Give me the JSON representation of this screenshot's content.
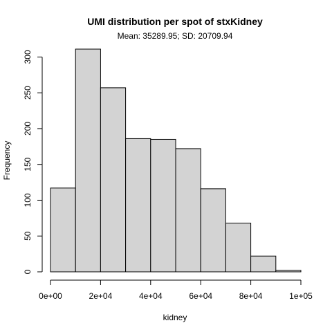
{
  "chart_data": {
    "type": "bar",
    "title": "UMI distribution per spot of stxKidney",
    "subtitle": "Mean: 35289.95; SD: 20709.94",
    "xlabel": "kidney",
    "ylabel": "Frequency",
    "bin_edges": [
      0,
      10000,
      20000,
      30000,
      40000,
      50000,
      60000,
      70000,
      80000,
      90000,
      100000
    ],
    "values": [
      117,
      311,
      257,
      186,
      185,
      172,
      116,
      68,
      22,
      2
    ],
    "xlim": [
      0,
      100000
    ],
    "ylim": [
      0,
      311
    ],
    "x_ticks": [
      0,
      20000,
      40000,
      60000,
      80000,
      100000
    ],
    "x_tick_labels": [
      "0e+00",
      "2e+04",
      "4e+04",
      "6e+04",
      "8e+04",
      "1e+05"
    ],
    "y_ticks": [
      0,
      50,
      100,
      150,
      200,
      250,
      300
    ],
    "y_tick_labels": [
      "0",
      "50",
      "100",
      "150",
      "200",
      "250",
      "300"
    ],
    "bar_color": "#d3d3d3",
    "grid": false,
    "legend": "none"
  }
}
